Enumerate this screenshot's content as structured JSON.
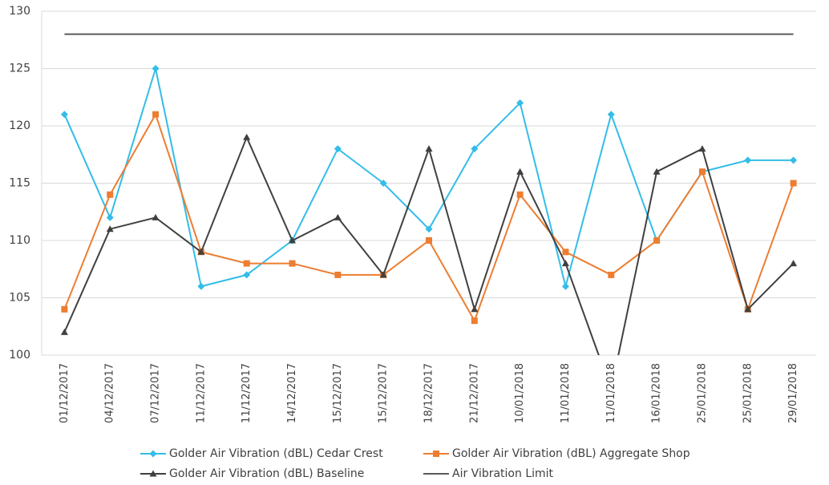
{
  "chart_data": {
    "type": "line",
    "categories": [
      "01/12/2017",
      "04/12/2017",
      "07/12/2017",
      "11/12/2017",
      "11/12/2017",
      "14/12/2017",
      "15/12/2017",
      "15/12/2017",
      "18/12/2017",
      "21/12/2017",
      "10/01/2018",
      "11/01/2018",
      "11/01/2018",
      "16/01/2018",
      "25/01/2018",
      "25/01/2018",
      "29/01/2018"
    ],
    "series": [
      {
        "name": "Golder Air Vibration (dBL) Cedar Crest",
        "color": "#33bde8",
        "marker": "diamond",
        "values": [
          121,
          112,
          125,
          106,
          107,
          110,
          118,
          115,
          111,
          118,
          122,
          106,
          121,
          110,
          116,
          117,
          117
        ]
      },
      {
        "name": "Golder Air Vibration (dBL) Aggregate Shop",
        "color": "#ed7d31",
        "marker": "square",
        "values": [
          104,
          114,
          121,
          109,
          108,
          108,
          107,
          107,
          110,
          103,
          114,
          109,
          107,
          110,
          116,
          104,
          115
        ]
      },
      {
        "name": "Golder Air Vibration (dBL) Baseline",
        "color": "#404040",
        "marker": "triangle",
        "values": [
          102,
          111,
          112,
          109,
          119,
          110,
          112,
          107,
          118,
          104,
          116,
          108,
          97,
          116,
          118,
          104,
          108
        ]
      },
      {
        "name": "Air Vibration Limit",
        "color": "#5a5a5a",
        "marker": "none",
        "values": [
          128,
          128,
          128,
          128,
          128,
          128,
          128,
          128,
          128,
          128,
          128,
          128,
          128,
          128,
          128,
          128,
          128
        ]
      }
    ],
    "ylim": [
      100,
      130
    ],
    "yticks": [
      100,
      105,
      110,
      115,
      120,
      125,
      130
    ],
    "grid": true
  }
}
